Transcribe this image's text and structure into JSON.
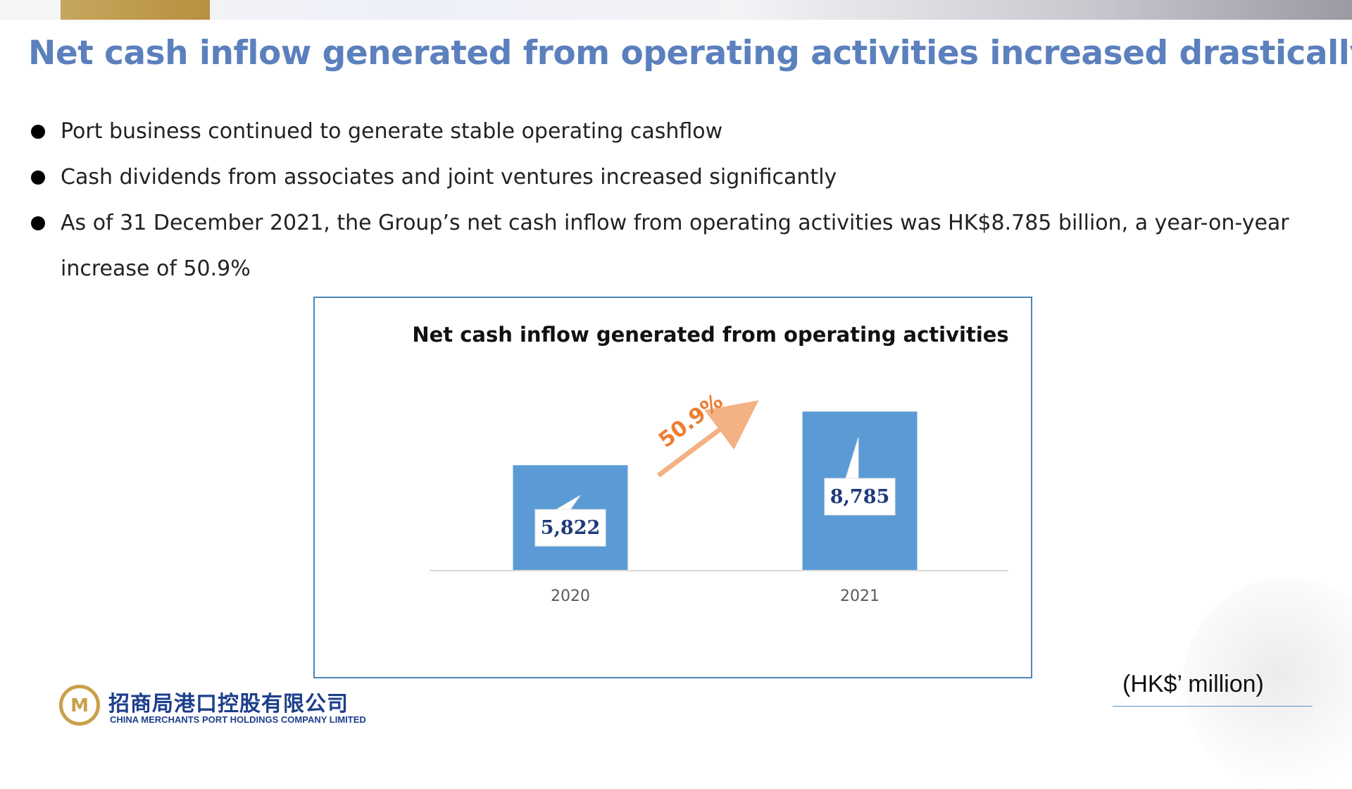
{
  "slide": {
    "title": "Net cash inflow generated from operating activities increased drastically",
    "bullets": [
      " Port business continued to generate stable operating cashflow",
      "Cash dividends from associates and joint ventures increased significantly",
      "As of 31 December 2021, the Group’s net cash inflow from operating activities was HK$8.785 billion, a year-on-year increase of 50.9%"
    ],
    "unit": "(HK$’ million)"
  },
  "logo": {
    "name_cn": "招商局港口控股有限公司",
    "name_en": "CHINA MERCHANTS PORT HOLDINGS COMPANY LIMITED"
  },
  "chart_data": {
    "type": "bar",
    "title": "Net cash inflow generated from operating activities",
    "categories": [
      "2020",
      "2021"
    ],
    "values": [
      5822,
      8785
    ],
    "data_labels": [
      "5,822",
      "8,785"
    ],
    "growth_annotation": "50.9%",
    "ylim": [
      0,
      10000
    ],
    "grid": false,
    "legend": "none",
    "colors": {
      "bar": "#5b9bd5",
      "growth": "#ed7d31",
      "axis": "#d9d9d9",
      "label_text": "#1f3a7a"
    }
  }
}
